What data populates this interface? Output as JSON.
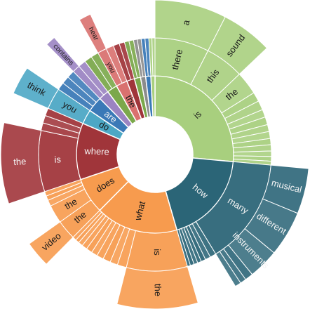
{
  "colors": {
    "green": "#A8CF7E",
    "teal": "#2B6577",
    "orange": "#F79B4E",
    "red": "#A0353A",
    "blue": "#4CA7C5",
    "purple": "#9B84C2",
    "pink": "#D9716F",
    "gray": "#8C8C8C",
    "olive": "#7BA84B",
    "steel": "#3A79B7"
  },
  "chart_data": {
    "type": "sunburst",
    "title": "",
    "start_angle_deg": 0,
    "hierarchy": [
      {
        "label": "is",
        "color": "green",
        "value": 25,
        "children": [
          {
            "label": "there",
            "value": 7,
            "children": [
              {
                "label": "a",
                "value": 7
              }
            ]
          },
          {
            "label": "this",
            "value": 5,
            "children": [
              {
                "label": "sound",
                "value": 5
              }
            ]
          },
          {
            "label": "the",
            "value": 3
          },
          {
            "label": "",
            "value": 1.2
          },
          {
            "label": "",
            "value": 1.2
          },
          {
            "label": "",
            "value": 1
          },
          {
            "label": "",
            "value": 1
          },
          {
            "label": "",
            "value": 0.9
          },
          {
            "label": "",
            "value": 0.9
          },
          {
            "label": "",
            "value": 0.8
          },
          {
            "label": "",
            "value": 0.8
          },
          {
            "label": "",
            "value": 0.7
          },
          {
            "label": "",
            "value": 0.6
          },
          {
            "label": "",
            "value": 0.5
          }
        ]
      },
      {
        "label": "how",
        "color": "teal",
        "value": 18,
        "children": [
          {
            "label": "many",
            "value": 14,
            "children": [
              {
                "label": "musical",
                "value": 4.5
              },
              {
                "label": "different",
                "value": 4.5
              },
              {
                "label": "instruments",
                "value": 3
              },
              {
                "label": "",
                "value": 0.8
              },
              {
                "label": "",
                "value": 0.6
              },
              {
                "label": "",
                "value": 0.6
              }
            ]
          },
          {
            "label": "",
            "value": 0.8
          },
          {
            "label": "",
            "value": 0.7
          },
          {
            "label": "",
            "value": 0.6
          },
          {
            "label": "",
            "value": 0.5
          },
          {
            "label": "",
            "value": 0.5
          },
          {
            "label": "",
            "value": 0.5
          },
          {
            "label": "",
            "value": 0.4
          }
        ]
      },
      {
        "label": "what",
        "color": "orange",
        "value": 16,
        "children": [
          {
            "label": "is",
            "value": 8,
            "children": [
              {
                "label": "the",
                "value": 8
              }
            ]
          },
          {
            "label": "",
            "value": 1.2
          },
          {
            "label": "",
            "value": 1
          },
          {
            "label": "",
            "value": 1
          },
          {
            "label": "",
            "value": 0.9
          },
          {
            "label": "",
            "value": 0.8
          },
          {
            "label": "",
            "value": 0.8
          },
          {
            "label": "",
            "value": 0.7
          },
          {
            "label": "",
            "value": 0.6
          },
          {
            "label": "",
            "value": 0.5
          },
          {
            "label": "",
            "value": 0.5
          }
        ]
      },
      {
        "label": "does",
        "color": "orange",
        "value": 7,
        "children": [
          {
            "label": "the",
            "value": 2.6,
            "children": [
              {
                "label": "video",
                "value": 2.6
              }
            ]
          },
          {
            "label": "the",
            "value": 2.4
          },
          {
            "label": "",
            "value": 0.8
          },
          {
            "label": "",
            "value": 0.6
          },
          {
            "label": "",
            "value": 0.6
          }
        ]
      },
      {
        "label": "where",
        "color": "red",
        "value": 11,
        "children": [
          {
            "label": "is",
            "value": 8,
            "children": [
              {
                "label": "the",
                "value": 8
              }
            ]
          },
          {
            "label": "",
            "value": 1
          },
          {
            "label": "",
            "value": 1
          },
          {
            "label": "",
            "value": 1
          }
        ]
      },
      {
        "label": "do",
        "color": "blue",
        "value": 2.8,
        "children": [
          {
            "label": "you",
            "value": 2.8,
            "children": [
              {
                "label": "think",
                "value": 2.8
              }
            ]
          }
        ]
      },
      {
        "label": "are",
        "color": "steel",
        "value": 3,
        "children": [
          {
            "label": "",
            "value": 1
          },
          {
            "label": "",
            "value": 1
          },
          {
            "label": "",
            "value": 1
          }
        ]
      },
      {
        "label": "",
        "color": "purple",
        "value": 2,
        "children": [
          {
            "label": "",
            "value": 1,
            "children": [
              {
                "label": "contains",
                "value": 1
              }
            ]
          },
          {
            "label": "",
            "value": 1
          }
        ]
      },
      {
        "label": "",
        "color": "olive",
        "value": 2,
        "children": [
          {
            "label": "",
            "value": 1
          },
          {
            "label": "",
            "value": 1
          }
        ]
      },
      {
        "label": "the",
        "color": "pink",
        "value": 2.2,
        "children": [
          {
            "label": "you",
            "value": 1.2,
            "children": [
              {
                "label": "hear",
                "value": 1.2
              }
            ]
          },
          {
            "label": "",
            "value": 1
          }
        ]
      },
      {
        "label": "",
        "color": "red",
        "value": 1.5,
        "children": [
          {
            "label": "",
            "value": 0.8
          },
          {
            "label": "",
            "value": 0.7
          }
        ]
      },
      {
        "label": "",
        "color": "olive",
        "value": 1.2,
        "children": [
          {
            "label": "",
            "value": 0.6
          },
          {
            "label": "",
            "value": 0.6
          }
        ]
      },
      {
        "label": "",
        "color": "gray",
        "value": 1,
        "children": [
          {
            "label": "",
            "value": 0.5
          },
          {
            "label": "",
            "value": 0.5
          }
        ]
      },
      {
        "label": "",
        "color": "steel",
        "value": 1,
        "children": [
          {
            "label": "",
            "value": 0.5
          },
          {
            "label": "",
            "value": 0.5
          }
        ]
      },
      {
        "label": "",
        "color": "green",
        "value": 0.8,
        "children": [
          {
            "label": "",
            "value": 0.4
          },
          {
            "label": "",
            "value": 0.4
          }
        ]
      }
    ]
  }
}
